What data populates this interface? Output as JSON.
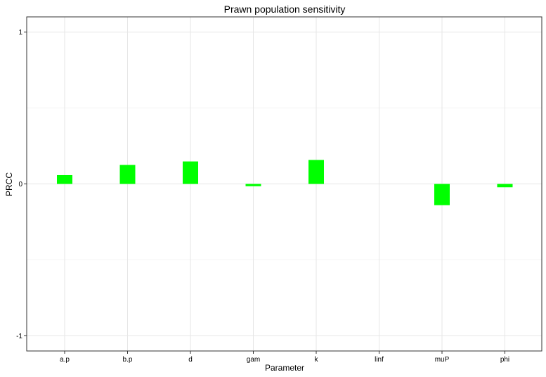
{
  "chart_data": {
    "type": "bar",
    "title": "Prawn population sensitivity",
    "xlabel": "Parameter",
    "ylabel": "PRCC",
    "categories": [
      "a.p",
      "b.p",
      "d",
      "gam",
      "k",
      "linf",
      "muP",
      "phi"
    ],
    "values": [
      0.058,
      0.125,
      0.148,
      -0.015,
      0.158,
      0.0,
      -0.14,
      -0.022
    ],
    "ylim": [
      -1.1,
      1.1
    ],
    "yticks": [
      -1,
      0,
      1
    ],
    "ytick_labels": [
      "-1",
      "0",
      "1"
    ],
    "grid": true,
    "bar_color": "#00ff00"
  }
}
